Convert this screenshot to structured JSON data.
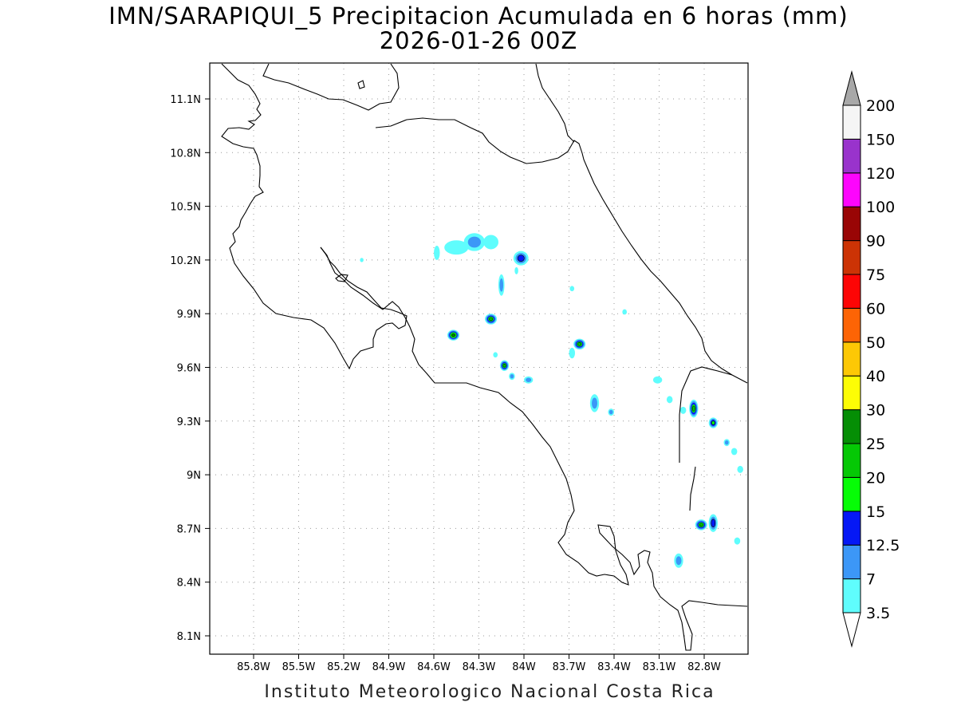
{
  "title": "IMN/SARAPIQUI_5 Precipitacion Acumulada en 6 horas (mm)",
  "subtitle": "2026-01-26 00Z",
  "footer": "Instituto Meteorologico Nacional Costa Rica",
  "map": {
    "lon_ticks": [
      "85.8W",
      "85.5W",
      "85.2W",
      "84.9W",
      "84.6W",
      "84.3W",
      "84W",
      "83.7W",
      "83.4W",
      "83.1W",
      "82.8W"
    ],
    "lat_ticks": [
      "11.1N",
      "10.8N",
      "10.5N",
      "10.2N",
      "9.9N",
      "9.6N",
      "9.3N",
      "9N",
      "8.7N",
      "8.4N",
      "8.1N"
    ],
    "grid": true,
    "colors": {
      "coast": "#000000",
      "grid": "#999999"
    }
  },
  "colorbar": {
    "levels": [
      "3.5",
      "7",
      "12.5",
      "15",
      "20",
      "25",
      "30",
      "40",
      "50",
      "60",
      "75",
      "90",
      "100",
      "120",
      "150",
      "200"
    ],
    "colors": [
      "#5ffdfd",
      "#3c97f7",
      "#0518f5",
      "#06fd06",
      "#05c805",
      "#058e05",
      "#fdfd05",
      "#fdc805",
      "#fd6405",
      "#fd0505",
      "#cc3305",
      "#990505",
      "#fd05fd",
      "#9933cc",
      "#f5f5f5",
      "#a8a8a8"
    ],
    "under_color": "#ffffff",
    "over_color": "#a8a8a8"
  },
  "precip_cells": [
    {
      "lon": -84.45,
      "lat": 10.27,
      "rx": 0.08,
      "ry": 0.04,
      "level": 1
    },
    {
      "lon": -84.33,
      "lat": 10.3,
      "rx": 0.07,
      "ry": 0.05,
      "level": 2
    },
    {
      "lon": -84.22,
      "lat": 10.3,
      "rx": 0.05,
      "ry": 0.04,
      "level": 1
    },
    {
      "lon": -84.02,
      "lat": 10.21,
      "rx": 0.05,
      "ry": 0.04,
      "level": 3
    },
    {
      "lon": -84.47,
      "lat": 9.78,
      "rx": 0.04,
      "ry": 0.03,
      "level": 6
    },
    {
      "lon": -84.22,
      "lat": 9.87,
      "rx": 0.04,
      "ry": 0.03,
      "level": 5
    },
    {
      "lon": -84.13,
      "lat": 9.61,
      "rx": 0.03,
      "ry": 0.03,
      "level": 5
    },
    {
      "lon": -83.63,
      "lat": 9.73,
      "rx": 0.04,
      "ry": 0.03,
      "level": 5
    },
    {
      "lon": -83.97,
      "lat": 9.53,
      "rx": 0.03,
      "ry": 0.02,
      "level": 2
    },
    {
      "lon": -83.53,
      "lat": 9.4,
      "rx": 0.03,
      "ry": 0.05,
      "level": 2
    },
    {
      "lon": -82.87,
      "lat": 9.37,
      "rx": 0.03,
      "ry": 0.05,
      "level": 5
    },
    {
      "lon": -82.74,
      "lat": 9.29,
      "rx": 0.03,
      "ry": 0.03,
      "level": 4
    },
    {
      "lon": -82.82,
      "lat": 8.72,
      "rx": 0.04,
      "ry": 0.03,
      "level": 5
    },
    {
      "lon": -82.74,
      "lat": 8.73,
      "rx": 0.03,
      "ry": 0.05,
      "level": 3
    },
    {
      "lon": -82.97,
      "lat": 8.52,
      "rx": 0.03,
      "ry": 0.04,
      "level": 2
    },
    {
      "lon": -84.15,
      "lat": 10.06,
      "rx": 0.02,
      "ry": 0.06,
      "level": 2
    },
    {
      "lon": -84.08,
      "lat": 9.55,
      "rx": 0.02,
      "ry": 0.02,
      "level": 2
    },
    {
      "lon": -83.11,
      "lat": 9.53,
      "rx": 0.03,
      "ry": 0.02,
      "level": 1
    },
    {
      "lon": -83.42,
      "lat": 9.35,
      "rx": 0.02,
      "ry": 0.02,
      "level": 2
    },
    {
      "lon": -82.65,
      "lat": 9.18,
      "rx": 0.02,
      "ry": 0.02,
      "level": 2
    },
    {
      "lon": -82.6,
      "lat": 9.13,
      "rx": 0.02,
      "ry": 0.02,
      "level": 1
    },
    {
      "lon": -82.56,
      "lat": 9.03,
      "rx": 0.02,
      "ry": 0.02,
      "level": 1
    },
    {
      "lon": -82.58,
      "lat": 8.63,
      "rx": 0.02,
      "ry": 0.02,
      "level": 1
    },
    {
      "lon": -84.58,
      "lat": 10.24,
      "rx": 0.02,
      "ry": 0.04,
      "level": 1
    },
    {
      "lon": -83.68,
      "lat": 10.04,
      "rx": 0.015,
      "ry": 0.015,
      "level": 1
    },
    {
      "lon": -83.33,
      "lat": 9.91,
      "rx": 0.015,
      "ry": 0.015,
      "level": 1
    },
    {
      "lon": -84.19,
      "lat": 9.67,
      "rx": 0.015,
      "ry": 0.015,
      "level": 1
    },
    {
      "lon": -84.05,
      "lat": 10.14,
      "rx": 0.012,
      "ry": 0.02,
      "level": 1
    },
    {
      "lon": -83.03,
      "lat": 9.42,
      "rx": 0.02,
      "ry": 0.02,
      "level": 1
    },
    {
      "lon": -82.94,
      "lat": 9.36,
      "rx": 0.02,
      "ry": 0.02,
      "level": 1
    },
    {
      "lon": -85.08,
      "lat": 10.2,
      "rx": 0.012,
      "ry": 0.012,
      "level": 1
    },
    {
      "lon": -83.68,
      "lat": 9.68,
      "rx": 0.02,
      "ry": 0.03,
      "level": 1
    }
  ]
}
